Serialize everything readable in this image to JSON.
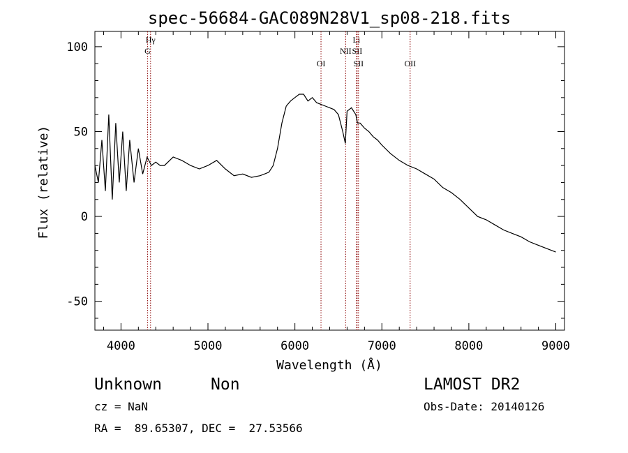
{
  "chart_data": {
    "type": "line",
    "title": "spec-56684-GAC089N28V1_sp08-218.fits",
    "xlabel": "Wavelength (Å)",
    "ylabel": "Flux (relative)",
    "xlim": [
      3700,
      9100
    ],
    "ylim": [
      -67,
      109
    ],
    "xticks": [
      4000,
      5000,
      6000,
      7000,
      8000,
      9000
    ],
    "yticks": [
      -50,
      0,
      50,
      100
    ],
    "grid": false,
    "series": [
      {
        "x": [
          3700,
          3740,
          3780,
          3820,
          3860,
          3900,
          3940,
          3980,
          4020,
          4060,
          4100,
          4150,
          4200,
          4250,
          4300,
          4350,
          4400,
          4450,
          4500,
          4600,
          4700,
          4800,
          4900,
          5000,
          5100,
          5200,
          5300,
          5400,
          5500,
          5600,
          5700,
          5750,
          5800,
          5850,
          5900,
          5950,
          6000,
          6050,
          6100,
          6150,
          6200,
          6250,
          6300,
          6350,
          6400,
          6450,
          6500,
          6550,
          6580,
          6600,
          6650,
          6700,
          6720,
          6750,
          6800,
          6850,
          6900,
          6950,
          7000,
          7100,
          7200,
          7300,
          7400,
          7500,
          7600,
          7700,
          7800,
          7900,
          8000,
          8100,
          8200,
          8300,
          8400,
          8500,
          8600,
          8700,
          8800,
          8900,
          8950,
          9000
        ],
        "y": [
          30,
          20,
          45,
          15,
          60,
          10,
          55,
          20,
          50,
          15,
          45,
          20,
          40,
          25,
          35,
          30,
          32,
          30,
          30,
          35,
          33,
          30,
          28,
          30,
          33,
          28,
          24,
          25,
          23,
          24,
          26,
          30,
          40,
          55,
          65,
          68,
          70,
          72,
          72,
          68,
          70,
          67,
          66,
          65,
          64,
          63,
          60,
          50,
          43,
          62,
          64,
          60,
          55,
          55,
          52,
          50,
          47,
          45,
          42,
          37,
          33,
          30,
          28,
          25,
          22,
          17,
          14,
          10,
          5,
          0,
          -2,
          -5,
          -8,
          -10,
          -12,
          -15,
          -17,
          -19,
          -20,
          -21
        ]
      }
    ],
    "line_markers": [
      {
        "label": "Hγ",
        "x": 4340,
        "row": 0
      },
      {
        "label": "G",
        "x": 4305,
        "row": 1
      },
      {
        "label": "OI",
        "x": 6300,
        "row": 2
      },
      {
        "label": "NII",
        "x": 6583,
        "row": 1
      },
      {
        "label": "Li",
        "x": 6708,
        "row": 0
      },
      {
        "label": "SII",
        "x": 6716,
        "row": 1
      },
      {
        "label": "SII",
        "x": 6731,
        "row": 2
      },
      {
        "label": "OII",
        "x": 7325,
        "row": 2
      }
    ],
    "marker_color": "#8b0000"
  },
  "footer": {
    "object_class": "Unknown",
    "subclass": "Non",
    "survey": "LAMOST DR2",
    "cz": "cz = NaN",
    "obs_date": "Obs-Date: 20140126",
    "coords": "RA =  89.65307, DEC =  27.53566"
  }
}
